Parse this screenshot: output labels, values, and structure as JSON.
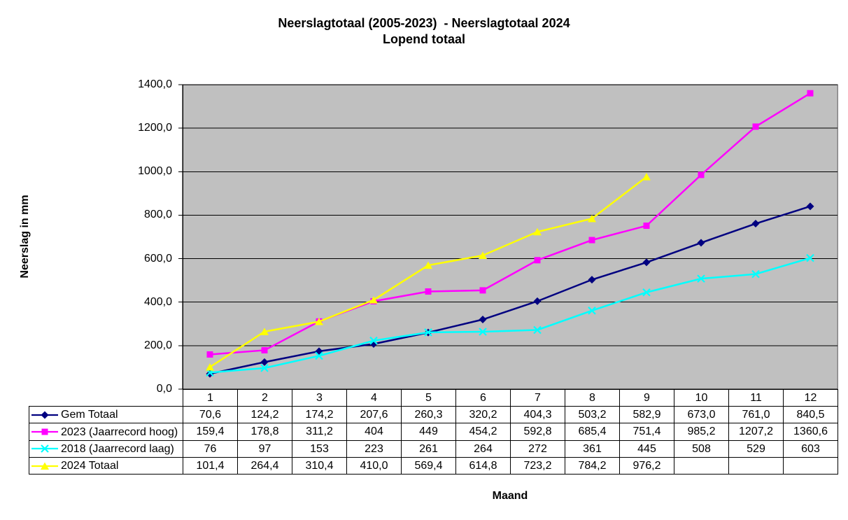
{
  "chart_data": {
    "type": "line",
    "title": "Neerslagtotaal (2005-2023)  - Neerslagtotaal 2024",
    "subtitle": "Lopend totaal",
    "xlabel": "Maand",
    "ylabel": "Neerslag in mm",
    "categories": [
      "1",
      "2",
      "3",
      "4",
      "5",
      "6",
      "7",
      "8",
      "9",
      "10",
      "11",
      "12"
    ],
    "ylim": [
      0,
      1400
    ],
    "ytick_labels": [
      "0,0",
      "200,0",
      "400,0",
      "600,0",
      "800,0",
      "1000,0",
      "1200,0",
      "1400,0"
    ],
    "grid": true,
    "legend_position": "table-left",
    "plot_bg_color": "#c0c0c0",
    "plot_border_color": "#848284",
    "gridline_color": "#000000",
    "series": [
      {
        "name": "Gem Totaal",
        "color": "#000080",
        "marker": "diamond",
        "values": [
          "70,6",
          "124,2",
          "174,2",
          "207,6",
          "260,3",
          "320,2",
          "404,3",
          "503,2",
          "582,9",
          "673,0",
          "761,0",
          "840,5"
        ]
      },
      {
        "name": "2023 (Jaarrecord hoog)",
        "color": "#ff00ff",
        "marker": "square",
        "values": [
          "159,4",
          "178,8",
          "311,2",
          "404",
          "449",
          "454,2",
          "592,8",
          "685,4",
          "751,4",
          "985,2",
          "1207,2",
          "1360,6"
        ]
      },
      {
        "name": "2018 (Jaarrecord laag)",
        "color": "#00ffff",
        "marker": "x",
        "values": [
          "76",
          "97",
          "153",
          "223",
          "261",
          "264",
          "272",
          "361",
          "445",
          "508",
          "529",
          "603"
        ]
      },
      {
        "name": "2024 Totaal",
        "color": "#ffff00",
        "marker": "triangle",
        "values": [
          "101,4",
          "264,4",
          "310,4",
          "410,0",
          "569,4",
          "614,8",
          "723,2",
          "784,2",
          "976,2",
          "",
          "",
          ""
        ]
      }
    ]
  }
}
